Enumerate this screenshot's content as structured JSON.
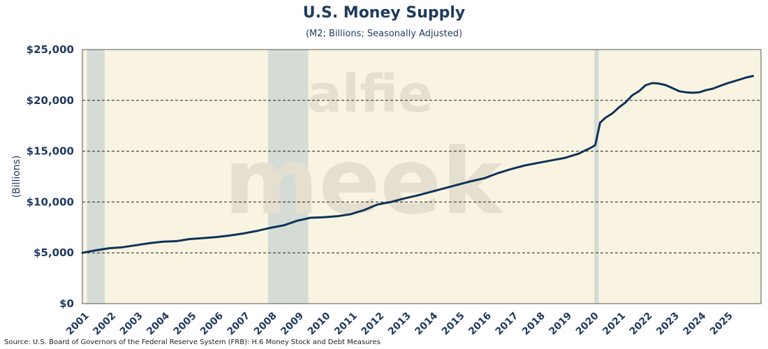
{
  "chart_data": {
    "type": "line",
    "title": "U.S. Money Supply",
    "subtitle": "(M2; Billions; Seasonally Adjusted)",
    "ylabel": "(Billions)",
    "xlabel": "",
    "ylim": [
      0,
      25000
    ],
    "xlim": [
      2001,
      2026.3
    ],
    "y_ticks": [
      0,
      5000,
      10000,
      15000,
      20000,
      25000
    ],
    "y_tick_labels": [
      "$0",
      "$5,000",
      "$10,000",
      "$15,000",
      "$20,000",
      "$25,000"
    ],
    "x_ticks": [
      2001,
      2002,
      2003,
      2004,
      2005,
      2006,
      2007,
      2008,
      2009,
      2010,
      2011,
      2012,
      2013,
      2014,
      2015,
      2016,
      2017,
      2018,
      2019,
      2020,
      2021,
      2022,
      2023,
      2024,
      2025
    ],
    "x_tick_labels": [
      "2001",
      "2002",
      "2003",
      "2004",
      "2005",
      "2006",
      "2007",
      "2008",
      "2009",
      "2010",
      "2011",
      "2012",
      "2013",
      "2014",
      "2015",
      "2016",
      "2017",
      "2018",
      "2019",
      "2020",
      "2021",
      "2022",
      "2023",
      "2024",
      "2025"
    ],
    "grid": "horizontal dashed",
    "recessions": [
      [
        2001.17,
        2001.83
      ],
      [
        2007.92,
        2009.42
      ],
      [
        2020.08,
        2020.25
      ]
    ],
    "series": [
      {
        "name": "M2",
        "color": "#0d3358",
        "points": [
          [
            2001.0,
            5000
          ],
          [
            2001.5,
            5250
          ],
          [
            2002.0,
            5450
          ],
          [
            2002.5,
            5550
          ],
          [
            2003.0,
            5750
          ],
          [
            2003.5,
            5950
          ],
          [
            2004.0,
            6100
          ],
          [
            2004.5,
            6150
          ],
          [
            2005.0,
            6350
          ],
          [
            2005.5,
            6450
          ],
          [
            2006.0,
            6550
          ],
          [
            2006.5,
            6700
          ],
          [
            2007.0,
            6900
          ],
          [
            2007.5,
            7150
          ],
          [
            2008.0,
            7450
          ],
          [
            2008.5,
            7700
          ],
          [
            2009.0,
            8150
          ],
          [
            2009.5,
            8450
          ],
          [
            2010.0,
            8500
          ],
          [
            2010.5,
            8600
          ],
          [
            2011.0,
            8800
          ],
          [
            2011.5,
            9200
          ],
          [
            2012.0,
            9750
          ],
          [
            2012.5,
            10000
          ],
          [
            2013.0,
            10350
          ],
          [
            2013.5,
            10650
          ],
          [
            2014.0,
            11000
          ],
          [
            2014.5,
            11350
          ],
          [
            2015.0,
            11700
          ],
          [
            2015.5,
            12050
          ],
          [
            2016.0,
            12350
          ],
          [
            2016.5,
            12850
          ],
          [
            2017.0,
            13250
          ],
          [
            2017.5,
            13600
          ],
          [
            2018.0,
            13850
          ],
          [
            2018.5,
            14100
          ],
          [
            2019.0,
            14350
          ],
          [
            2019.5,
            14750
          ],
          [
            2020.0,
            15400
          ],
          [
            2020.12,
            15600
          ],
          [
            2020.3,
            17800
          ],
          [
            2020.5,
            18300
          ],
          [
            2020.75,
            18700
          ],
          [
            2021.0,
            19300
          ],
          [
            2021.25,
            19800
          ],
          [
            2021.5,
            20500
          ],
          [
            2021.75,
            20900
          ],
          [
            2022.0,
            21500
          ],
          [
            2022.25,
            21700
          ],
          [
            2022.5,
            21650
          ],
          [
            2022.75,
            21500
          ],
          [
            2023.0,
            21200
          ],
          [
            2023.25,
            20900
          ],
          [
            2023.5,
            20800
          ],
          [
            2023.75,
            20750
          ],
          [
            2024.0,
            20800
          ],
          [
            2024.25,
            21000
          ],
          [
            2024.5,
            21150
          ],
          [
            2024.75,
            21400
          ],
          [
            2025.0,
            21650
          ],
          [
            2025.25,
            21850
          ],
          [
            2025.5,
            22050
          ],
          [
            2025.75,
            22250
          ],
          [
            2026.0,
            22400
          ]
        ]
      }
    ],
    "watermark": "alfie meek"
  },
  "footer": {
    "source": "Source: U.S. Board of Governors of the Federal Reserve System (FRB): H.6 Money Stock and Debt Measures"
  }
}
